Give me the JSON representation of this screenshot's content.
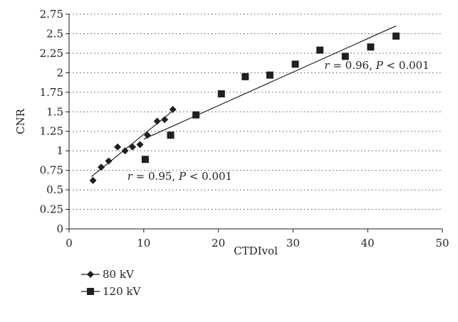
{
  "chart_data": {
    "type": "scatter",
    "xlabel": "CTDIvol",
    "ylabel": "CNR",
    "xlim": [
      0,
      50
    ],
    "ylim": [
      0,
      2.75
    ],
    "xticks": [
      "0",
      "10",
      "20",
      "30",
      "40",
      "50"
    ],
    "yticks": [
      "0",
      "0.25",
      "0.5",
      "0.75",
      "1",
      "1.25",
      "1.5",
      "1.75",
      "2",
      "2.25",
      "2.5",
      "2.75"
    ],
    "grid": "horizontal dotted",
    "legend_position": "bottom-left",
    "series": [
      {
        "name": "80 kV",
        "marker": "diamond",
        "x": [
          3.2,
          4.3,
          5.3,
          6.5,
          7.5,
          8.5,
          9.5,
          10.5,
          11.8,
          12.8,
          13.9
        ],
        "y": [
          0.62,
          0.79,
          0.87,
          1.05,
          1.0,
          1.05,
          1.08,
          1.2,
          1.38,
          1.4,
          1.53
        ],
        "trend": {
          "x": [
            3.0,
            14.0
          ],
          "y": [
            0.67,
            1.52
          ]
        }
      },
      {
        "name": "120 kV",
        "marker": "square",
        "x": [
          10.2,
          13.6,
          17.0,
          20.4,
          23.6,
          26.9,
          30.3,
          33.6,
          37.0,
          40.4,
          43.8
        ],
        "y": [
          0.89,
          1.2,
          1.46,
          1.73,
          1.95,
          1.97,
          2.11,
          2.29,
          2.21,
          2.33,
          2.47
        ],
        "trend": {
          "x": [
            10.0,
            43.8
          ],
          "y": [
            1.15,
            2.6
          ]
        }
      }
    ],
    "annotations": [
      {
        "r": "r",
        "eq": " = 0.95, ",
        "p": "P",
        "rest": " < 0.001",
        "anchor": {
          "x": 7.8,
          "y": 0.63
        }
      },
      {
        "r": "r",
        "eq": " = 0.96, ",
        "p": "P",
        "rest": " < 0.001",
        "anchor": {
          "x": 34.2,
          "y": 2.05
        }
      }
    ]
  }
}
